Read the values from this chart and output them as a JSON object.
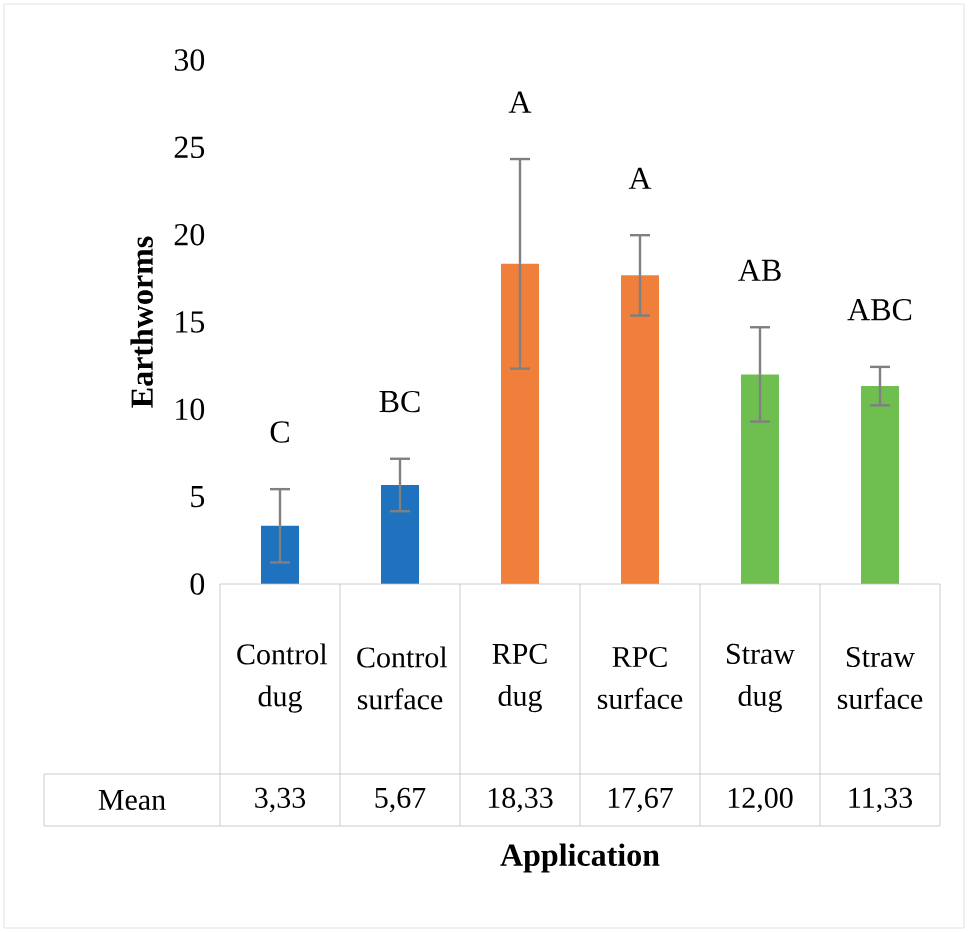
{
  "chart_data": {
    "type": "bar",
    "categories": [
      "Control dug",
      "Control surface",
      "RPC dug",
      "RPC surface",
      "Straw dug",
      "Straw surface"
    ],
    "series": [
      {
        "name": "Mean",
        "colors": [
          "#1f73be",
          "#1f73be",
          "#f07f3c",
          "#f07f3c",
          "#6fbe50",
          "#6fbe50"
        ],
        "values": [
          3.33,
          5.67,
          18.33,
          17.67,
          12.0,
          11.33
        ],
        "value_labels": [
          "3,33",
          "5,67",
          "18,33",
          "17,67",
          "12,00",
          "11,33"
        ],
        "errors": [
          2.1,
          1.5,
          6.0,
          2.3,
          2.7,
          1.1
        ]
      }
    ],
    "ylabel": "Earthworms",
    "xlabel": "Application",
    "ylim": [
      0,
      30
    ],
    "yticks": [
      0,
      5,
      10,
      15,
      20,
      25,
      30
    ],
    "annotations": [
      "C",
      "BC",
      "A",
      "A",
      "AB",
      "ABC"
    ],
    "grid": false
  }
}
